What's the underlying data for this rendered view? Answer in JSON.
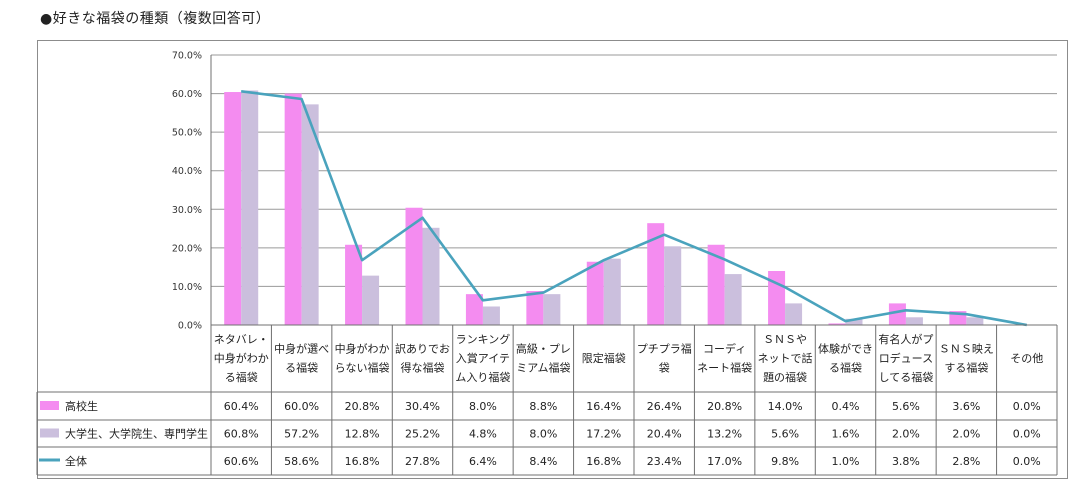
{
  "title": "●好きな福袋の種類（複数回答可）",
  "chart_data": {
    "type": "bar",
    "ylim": [
      0,
      70
    ],
    "ytick_labels": [
      "0.0%",
      "10.0%",
      "20.0%",
      "30.0%",
      "40.0%",
      "50.0%",
      "60.0%",
      "70.0%"
    ],
    "grid": true,
    "legend": "table-left",
    "categories": [
      [
        "ネタバレ・",
        "中身がわか",
        "る福袋"
      ],
      [
        "中身が選べ",
        "る福袋"
      ],
      [
        "中身がわか",
        "らない福袋"
      ],
      [
        "訳ありでお",
        "得な福袋"
      ],
      [
        "ランキング",
        "入賞アイテ",
        "ム入り福袋"
      ],
      [
        "高級・プレ",
        "ミアム福袋"
      ],
      [
        "限定福袋"
      ],
      [
        "プチプラ福",
        "袋"
      ],
      [
        "コーディ",
        "ネート福袋"
      ],
      [
        "ＳＮＳや",
        "ネットで話",
        "題の福袋"
      ],
      [
        "体験ができ",
        "る福袋"
      ],
      [
        "有名人がプ",
        "ロデュース",
        "してる福袋"
      ],
      [
        "ＳＮＳ映え",
        "する福袋"
      ],
      [
        "その他"
      ]
    ],
    "series": [
      {
        "name": "高校生",
        "kind": "bar",
        "color": "#f48cf0",
        "values": [
          60.4,
          60.0,
          20.8,
          30.4,
          8.0,
          8.8,
          16.4,
          26.4,
          20.8,
          14.0,
          0.4,
          5.6,
          3.6,
          0.0
        ],
        "labels": [
          "60.4%",
          "60.0%",
          "20.8%",
          "30.4%",
          "8.0%",
          "8.8%",
          "16.4%",
          "26.4%",
          "20.8%",
          "14.0%",
          "0.4%",
          "5.6%",
          "3.6%",
          "0.0%"
        ]
      },
      {
        "name": "大学生、大学院生、専門学生",
        "kind": "bar",
        "color": "#cbbfdd",
        "values": [
          60.8,
          57.2,
          12.8,
          25.2,
          4.8,
          8.0,
          17.2,
          20.4,
          13.2,
          5.6,
          1.6,
          2.0,
          2.0,
          0.0
        ],
        "labels": [
          "60.8%",
          "57.2%",
          "12.8%",
          "25.2%",
          "4.8%",
          "8.0%",
          "17.2%",
          "20.4%",
          "13.2%",
          "5.6%",
          "1.6%",
          "2.0%",
          "2.0%",
          "0.0%"
        ]
      },
      {
        "name": "全体",
        "kind": "line",
        "color": "#4aa3bd",
        "values": [
          60.6,
          58.6,
          16.8,
          27.8,
          6.4,
          8.4,
          16.8,
          23.4,
          17.0,
          9.8,
          1.0,
          3.8,
          2.8,
          0.0
        ],
        "labels": [
          "60.6%",
          "58.6%",
          "16.8%",
          "27.8%",
          "6.4%",
          "8.4%",
          "16.8%",
          "23.4%",
          "17.0%",
          "9.8%",
          "1.0%",
          "3.8%",
          "2.8%",
          "0.0%"
        ]
      }
    ]
  }
}
